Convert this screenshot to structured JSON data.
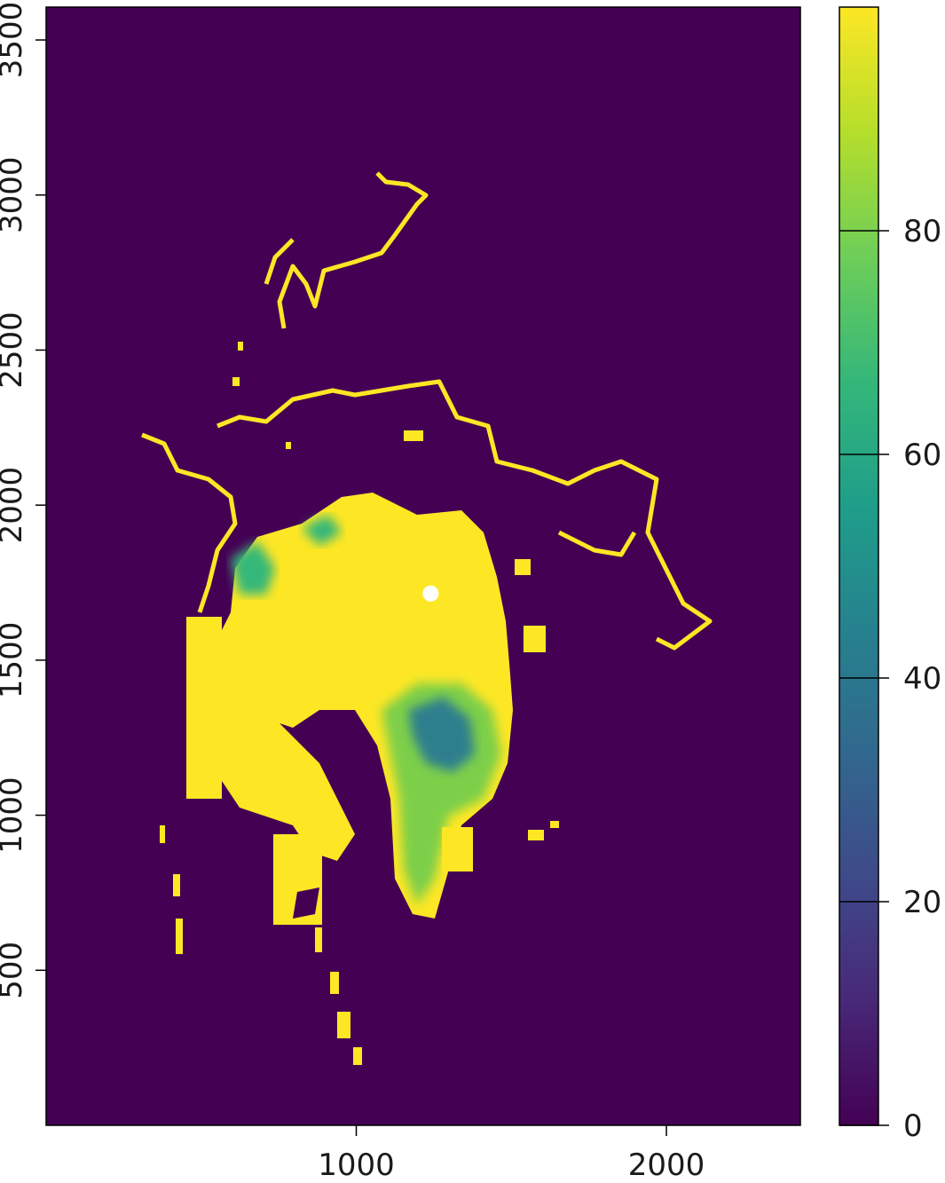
{
  "chart_data": {
    "type": "heatmap",
    "title": "",
    "xlabel": "",
    "ylabel": "",
    "xlim": [
      0,
      2432
    ],
    "ylim": [
      0,
      3606
    ],
    "x_ticks": [
      {
        "value": 1000,
        "label": "1000"
      },
      {
        "value": 2000,
        "label": "2000"
      }
    ],
    "y_ticks": [
      {
        "value": 500,
        "label": "500"
      },
      {
        "value": 1000,
        "label": "1000"
      },
      {
        "value": 1500,
        "label": "1500"
      },
      {
        "value": 2000,
        "label": "2000"
      },
      {
        "value": 2500,
        "label": "2500"
      },
      {
        "value": 3000,
        "label": "3000"
      },
      {
        "value": 3500,
        "label": "3500"
      }
    ],
    "colorbar": {
      "range": [
        0,
        100
      ],
      "ticks": [
        {
          "value": 0,
          "label": "0"
        },
        {
          "value": 20,
          "label": "20"
        },
        {
          "value": 40,
          "label": "40"
        },
        {
          "value": 60,
          "label": "60"
        },
        {
          "value": 80,
          "label": "80"
        }
      ],
      "colors": [
        "#440154",
        "#482878",
        "#3e4a89",
        "#31688e",
        "#26828e",
        "#1f9e89",
        "#35b779",
        "#6ece58",
        "#b5de2b",
        "#fde725"
      ]
    },
    "background_color": "#440154",
    "pole_marker": {
      "x": 1240,
      "y": 1715,
      "color": "#ffffff"
    }
  }
}
